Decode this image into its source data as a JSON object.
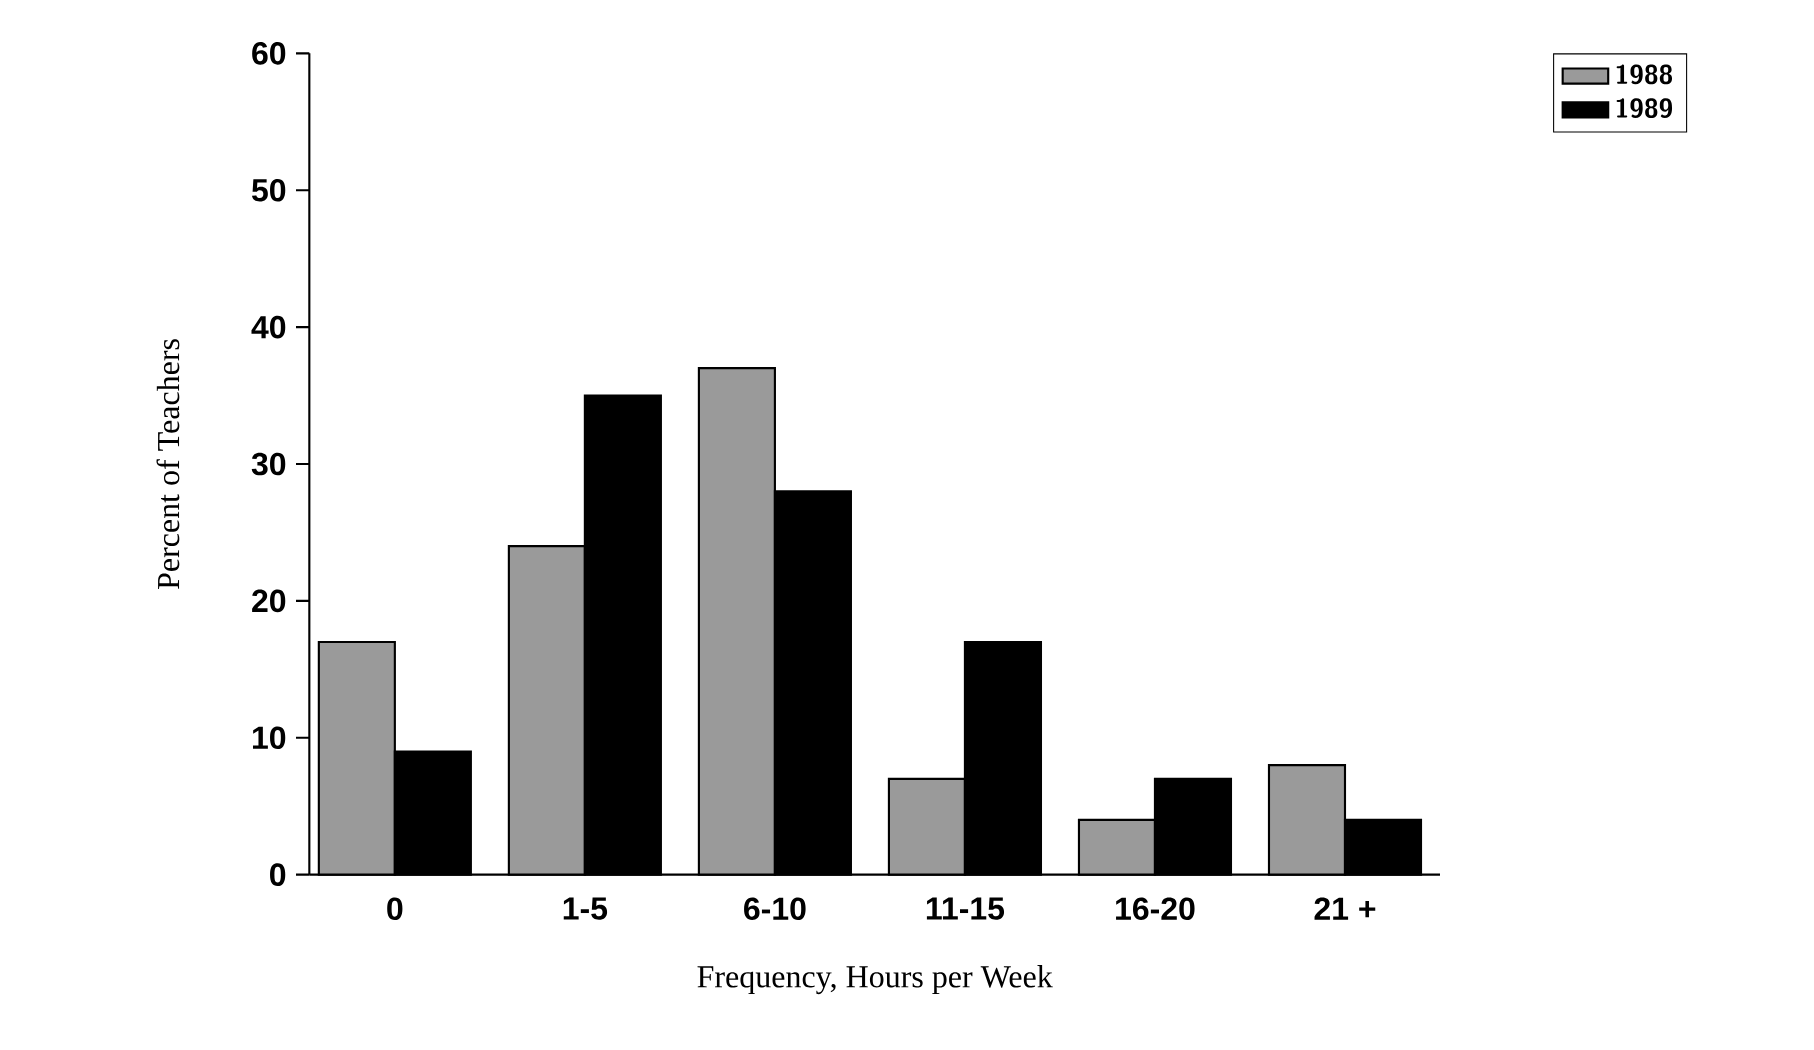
{
  "chart_data": {
    "type": "bar",
    "xlabel": "Frequency, Hours per Week",
    "ylabel": "Percent of Teachers",
    "categories": [
      "0",
      "1-5",
      "6-10",
      "11-15",
      "16-20",
      "21 +"
    ],
    "series": [
      {
        "name": "1988",
        "color": "#9a9a9a",
        "values": [
          17,
          24,
          37,
          7,
          4,
          8
        ]
      },
      {
        "name": "1989",
        "color": "#000000",
        "values": [
          9,
          35,
          28,
          17,
          7,
          4
        ]
      }
    ],
    "ylim": [
      0,
      60
    ],
    "yticks": [
      0,
      10,
      20,
      30,
      40,
      50,
      60
    ],
    "legend": "top right",
    "grid": false
  }
}
